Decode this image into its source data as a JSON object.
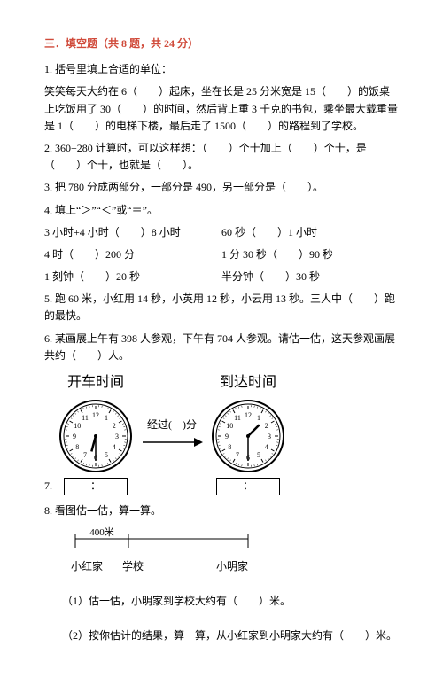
{
  "section_title": "三．填空题（共 8 题，共 24 分）",
  "q1_intro": "1. 括号里填上合适的单位：",
  "q1_body": "笑笑每天大约在 6（　　）起床，坐在长是 25 分米宽是 15（　　）的饭桌上吃饭用了 30（　　）的时间，然后背上重 3 千克的书包，乘坐最大载重量是 1（　　）的电梯下楼，最后走了 1500（　　）的路程到了学校。",
  "q2": "2. 360+280 计算时，可以这样想：（　　）个十加上（　　）个十，是（　　）个十，也就是（　　）。",
  "q3": "3. 把 780 分成两部分，一部分是 490，另一部分是（　　）。",
  "q4": "4. 填上“＞”“＜”或“＝”。",
  "q4_r1a": "3 小时+4 小时（　　）8 小时",
  "q4_r1b": "60 秒（　　）1 小时",
  "q4_r2a": "4 时（　　）200 分",
  "q4_r2b": "1 分 30 秒（　　）90 秒",
  "q4_r3a": "1 刻钟（　　）20 秒",
  "q4_r3b": "半分钟（　　）30 秒",
  "q5": "5. 跑 60 米，小红用 14 秒，小英用 12 秒，小云用 13 秒。三人中（　　）跑的最快。",
  "q6": "6. 某画展上午有 398 人参观，下午有 704 人参观。请估一估，这天参观画展共约（　　）人。",
  "q7_num": "7.",
  "q7_depart": "开车时间",
  "q7_arrive": "到达时间",
  "q7_mid": "经过(　)分",
  "q7_colon": "：",
  "q8": "8. 看图估一估，算一算。",
  "q8_dist": "400米",
  "q8_a": "小红家",
  "q8_b": "学校",
  "q8_c": "小明家",
  "q8_1": "（1）估一估，小明家到学校大约有（　　）米。",
  "q8_2": "（2）按你估计的结果，算一算，从小红家到小明家大约有（　　）米。",
  "clock": {
    "hour_marks": [
      12,
      1,
      2,
      3,
      4,
      5,
      6,
      7,
      8,
      9,
      10,
      11
    ],
    "depart": {
      "hour_angle": 195,
      "minute_angle": 180
    },
    "arrive": {
      "hour_angle": 45,
      "minute_angle": 180
    }
  },
  "colors": {
    "title": "#d04a3a",
    "text": "#000000"
  }
}
